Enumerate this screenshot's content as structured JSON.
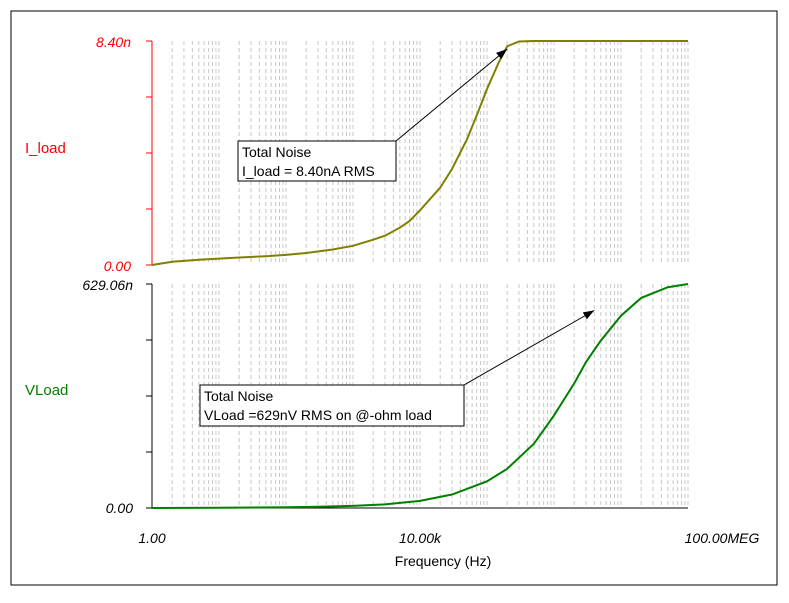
{
  "chart_data": [
    {
      "type": "line",
      "ylabel": "I_load",
      "ylim": [
        0,
        8.4
      ],
      "y_unit": "n",
      "yticks": [
        "8.40n",
        "0.00"
      ],
      "xlim": [
        1,
        100000000
      ],
      "x_scale": "log",
      "grid": "x-minor-dashed",
      "series": [
        {
          "color": "#808000",
          "x": [
            1,
            2,
            5,
            10,
            20,
            50,
            100,
            200,
            500,
            1000,
            2000,
            3000,
            5000,
            7000,
            10000,
            20000,
            30000,
            50000,
            70000,
            100000,
            150000,
            200000,
            300000,
            500000,
            1000000,
            10000000,
            100000000
          ],
          "y": [
            0.0,
            0.12,
            0.2,
            0.24,
            0.28,
            0.33,
            0.38,
            0.45,
            0.58,
            0.72,
            0.95,
            1.1,
            1.4,
            1.65,
            2.05,
            2.9,
            3.6,
            4.7,
            5.6,
            6.6,
            7.6,
            8.2,
            8.38,
            8.4,
            8.4,
            8.4,
            8.4
          ]
        }
      ],
      "annotation": {
        "title": "Total Noise",
        "text": "I_load = 8.40nA RMS",
        "arrow_x": 200000,
        "arrow_y": 8.1
      }
    },
    {
      "type": "line",
      "ylabel": "VLoad",
      "ylim": [
        0,
        629.06
      ],
      "y_unit": "n",
      "yticks": [
        "629.06n",
        "0.00"
      ],
      "xlim": [
        1,
        100000000
      ],
      "x_scale": "log",
      "xticks": [
        "1.00",
        "10.00k",
        "100.00MEG"
      ],
      "xlabel": "Frequency (Hz)",
      "grid": "x-minor-dashed",
      "series": [
        {
          "color": "#008000",
          "x": [
            1,
            10,
            100,
            300,
            1000,
            3000,
            10000,
            30000,
            100000,
            200000,
            500000,
            1000000,
            2000000,
            3000000,
            5000000,
            10000000,
            20000000,
            50000000,
            100000000
          ],
          "y": [
            0,
            0.6,
            2,
            3.5,
            6,
            10,
            20,
            38,
            75,
            110,
            180,
            260,
            350,
            410,
            470,
            540,
            590,
            620,
            629.06
          ]
        }
      ],
      "annotation": {
        "title": "Total Noise",
        "text": "VLoad =629nV RMS on @-ohm load",
        "arrow_x": 4000000,
        "arrow_y": 555
      }
    }
  ]
}
